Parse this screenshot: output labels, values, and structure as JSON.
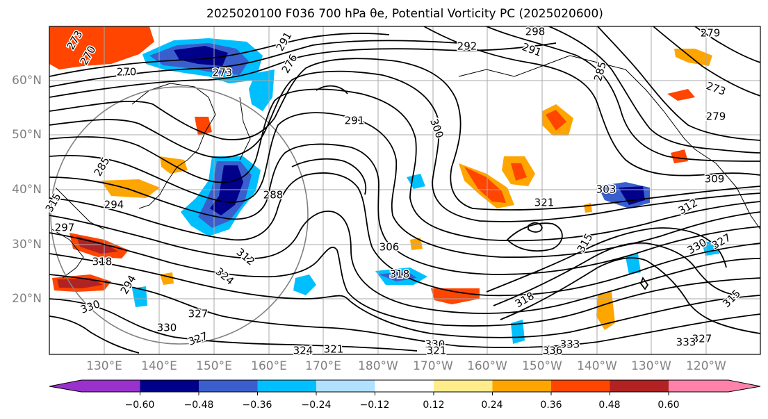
{
  "title": "2025020100 F036 700 hPa θe, Potential Vorticity PC (2025020600)",
  "map": {
    "lat_labels": [
      "60°N",
      "50°N",
      "40°N",
      "30°N",
      "20°N"
    ],
    "lon_labels": [
      "130°E",
      "140°E",
      "150°E",
      "160°E",
      "170°E",
      "180°W",
      "170°W",
      "160°W",
      "150°W",
      "140°W",
      "130°W",
      "120°W"
    ],
    "contour_labels": [
      "273",
      "270",
      "270",
      "273",
      "291",
      "291",
      "292",
      "298",
      "285",
      "279",
      "273",
      "300",
      "288",
      "294",
      "297",
      "318",
      "306",
      "312",
      "324",
      "327",
      "330",
      "321",
      "318",
      "315",
      "315",
      "312",
      "309",
      "303",
      "327",
      "330",
      "333",
      "336",
      "327",
      "324",
      "321",
      "333",
      "330",
      "318",
      "321",
      "315",
      "285",
      "279",
      "276",
      "291",
      "294",
      "327",
      "330"
    ]
  },
  "colorbar": {
    "ticks": [
      "−0.60",
      "−0.48",
      "−0.36",
      "−0.24",
      "−0.12",
      "0.12",
      "0.24",
      "0.36",
      "0.48",
      "0.60"
    ],
    "colors": [
      "#9932cc",
      "#00008b",
      "#3a5fcd",
      "#00bfff",
      "#b0e2ff",
      "#ffffff",
      "#ffec8b",
      "#ffa500",
      "#ff4500",
      "#b22222",
      "#ff82ab"
    ]
  }
}
